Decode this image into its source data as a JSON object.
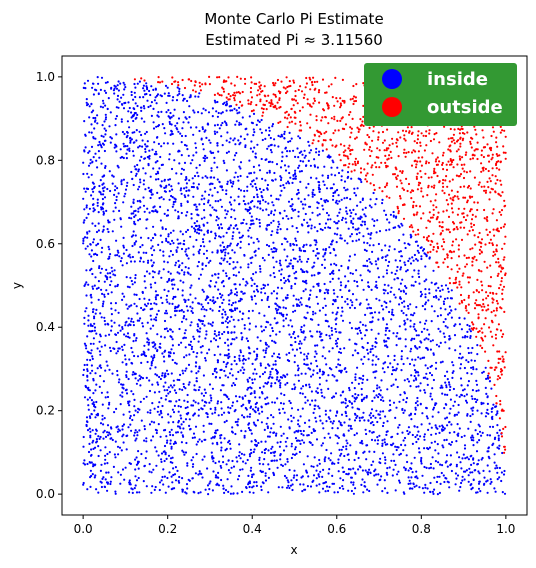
{
  "chart_data": {
    "type": "scatter",
    "title": "Monte Carlo Pi Estimate",
    "subtitle": "Estimated Pi ≈ 3.11560",
    "xlabel": "x",
    "ylabel": "y",
    "xlim": [
      -0.05,
      1.05
    ],
    "ylim": [
      -0.05,
      1.05
    ],
    "x_ticks": [
      "0.0",
      "0.2",
      "0.4",
      "0.6",
      "0.8",
      "1.0"
    ],
    "y_ticks": [
      "0.0",
      "0.2",
      "0.4",
      "0.6",
      "0.8",
      "1.0"
    ],
    "grid": false,
    "sample_count": 10000,
    "series": [
      {
        "name": "inside",
        "color": "#0000ff",
        "region": "x^2 + y^2 <= 1"
      },
      {
        "name": "outside",
        "color": "#ff0000",
        "region": "x^2 + y^2 > 1"
      }
    ],
    "legend": {
      "position": "top-right",
      "background": "#339933",
      "text_color": "#ffffff"
    },
    "estimated_pi": 3.1156
  }
}
